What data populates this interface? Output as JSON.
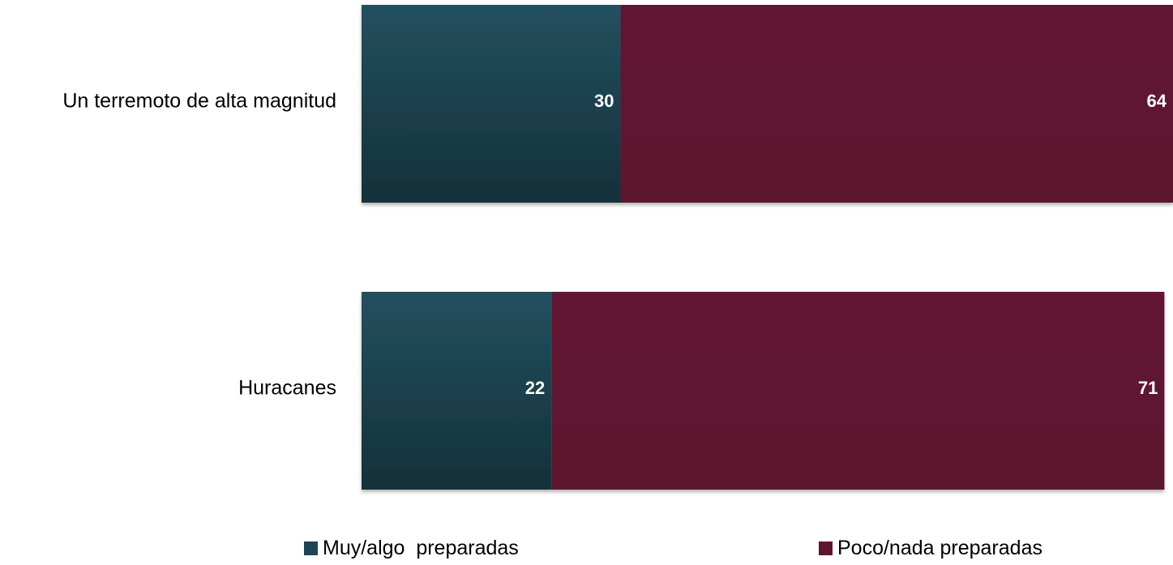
{
  "chart_data": {
    "type": "bar",
    "orientation": "horizontal",
    "stacked": true,
    "categories": [
      "Un terremoto de alta magnitud",
      "Huracanes"
    ],
    "series": [
      {
        "name": "Muy/algo  preparadas",
        "values": [
          30,
          22
        ],
        "color": "#1d4553"
      },
      {
        "name": "Poco/nada preparadas",
        "values": [
          64,
          71
        ],
        "color": "#5f1530"
      }
    ],
    "xlim": [
      0,
      94
    ],
    "grid": false,
    "legend_position": "bottom"
  }
}
